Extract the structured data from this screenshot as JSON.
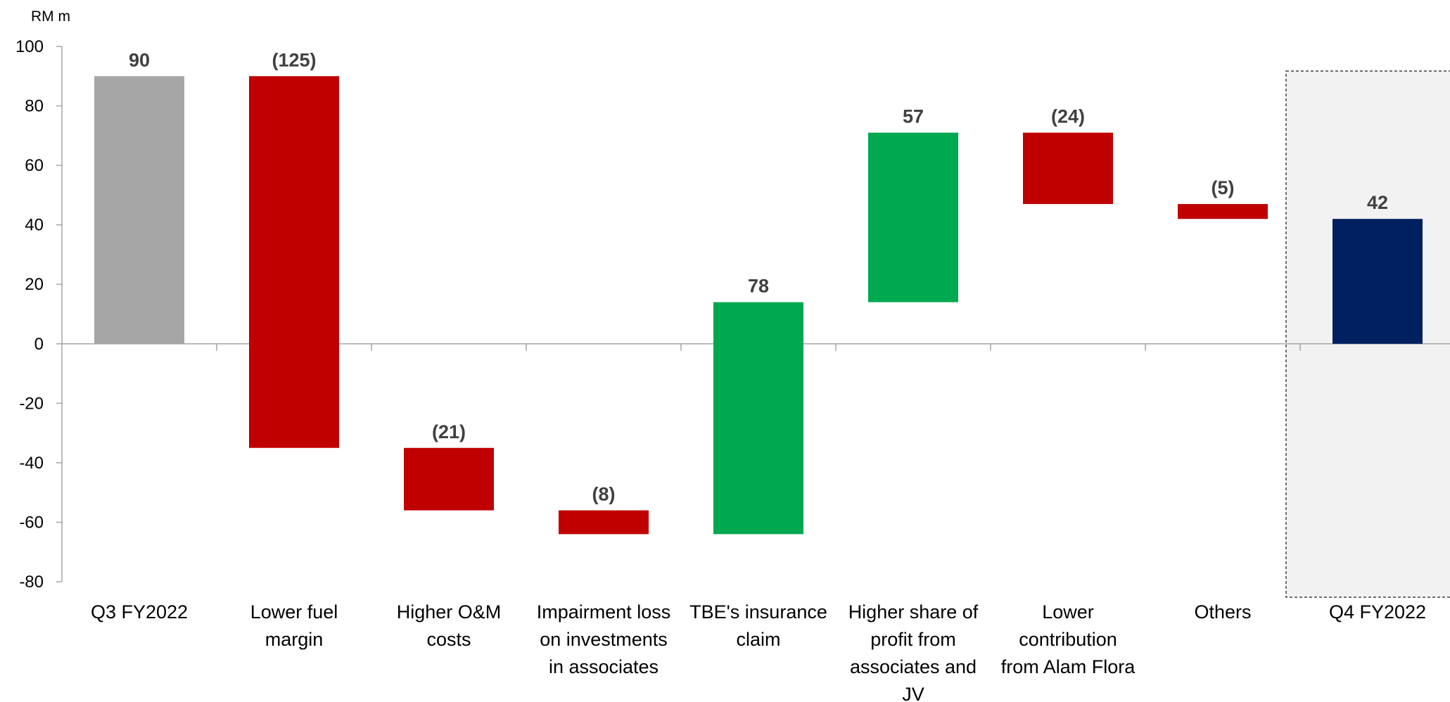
{
  "chart_data": {
    "type": "bar",
    "subtype": "waterfall",
    "unit_label": "RM m",
    "ylim": [
      -80,
      100
    ],
    "yticks": [
      100,
      80,
      60,
      40,
      20,
      0,
      -20,
      -40,
      -60,
      -80
    ],
    "grid": false,
    "legend": "none",
    "highlight_last_category": true,
    "categories": [
      [
        "Q3 FY2022"
      ],
      [
        "Lower fuel",
        "margin"
      ],
      [
        "Higher O&M",
        "costs"
      ],
      [
        "Impairment loss",
        "on investments",
        "in associates"
      ],
      [
        "TBE's insurance",
        "claim"
      ],
      [
        "Higher share of",
        "profit from",
        "associates and",
        "JV"
      ],
      [
        "Lower",
        "contribution",
        "from Alam Flora"
      ],
      [
        "Others"
      ],
      [
        "Q4 FY2022"
      ]
    ],
    "bars": [
      {
        "start": 0,
        "end": 90,
        "label": "90",
        "kind": "total"
      },
      {
        "start": 90,
        "end": -35,
        "label": "(125)",
        "kind": "decrease"
      },
      {
        "start": -35,
        "end": -56,
        "label": "(21)",
        "kind": "decrease"
      },
      {
        "start": -56,
        "end": -64,
        "label": "(8)",
        "kind": "decrease"
      },
      {
        "start": -64,
        "end": 14,
        "label": "78",
        "kind": "increase"
      },
      {
        "start": 14,
        "end": 71,
        "label": "57",
        "kind": "increase"
      },
      {
        "start": 71,
        "end": 47,
        "label": "(24)",
        "kind": "decrease"
      },
      {
        "start": 47,
        "end": 42,
        "label": "(5)",
        "kind": "decrease"
      },
      {
        "start": 0,
        "end": 42,
        "label": "42",
        "kind": "final"
      }
    ],
    "colors": {
      "total": "#a6a6a6",
      "decrease": "#c00000",
      "increase": "#00a84f",
      "final": "#002060",
      "axis": "#a6a6a6",
      "highlight_fill": "#f2f2f2",
      "highlight_border": "#404040"
    }
  }
}
